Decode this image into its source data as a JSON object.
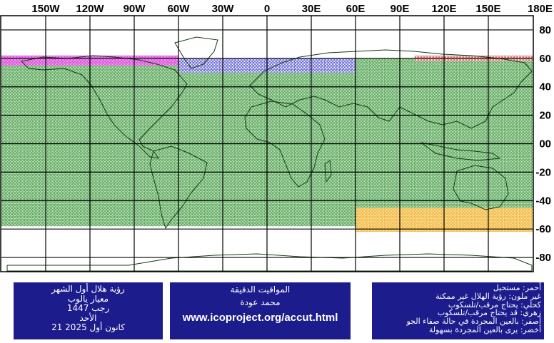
{
  "map": {
    "lon_ticks": [
      "150W",
      "120W",
      "90W",
      "60W",
      "30W",
      "0",
      "30E",
      "60E",
      "90E",
      "120E",
      "150E",
      "180E"
    ],
    "lat_ticks": [
      "80",
      "60",
      "40",
      "20",
      "00",
      "-20",
      "-40",
      "-60",
      "-80"
    ],
    "zones": [
      {
        "name": "green",
        "color": "#2e8b2e",
        "fill": "#c8e6c8",
        "lat": [
          -58,
          60
        ],
        "lon": [
          -180,
          180
        ]
      },
      {
        "name": "yellow",
        "color": "#e8a020",
        "fill": "#ffe6a0",
        "lat": [
          -62,
          -45
        ],
        "lon": [
          60,
          180
        ]
      },
      {
        "name": "magenta",
        "color": "#d020d0",
        "fill": "#f0b0f0",
        "lat": [
          55,
          62
        ],
        "lon": [
          -180,
          -60
        ]
      },
      {
        "name": "blue",
        "color": "#2020c0",
        "fill": "#ffffff",
        "lat": [
          50,
          60
        ],
        "lon": [
          -60,
          60
        ]
      },
      {
        "name": "red",
        "color": "#c02020",
        "fill": "#ffffff",
        "lat": [
          58,
          62
        ],
        "lon": [
          100,
          180
        ]
      }
    ]
  },
  "left_panel": {
    "line1": "رؤية هلال أول الشهر",
    "line2": "معيار يالوب",
    "line3": "رجب 1447",
    "line4": "الأحد",
    "line5": "21 كانون أول 2025"
  },
  "middle_panel": {
    "line1": "المواقيت الدقيقة",
    "line2": "محمد عودة",
    "url": "www.icoproject.org/accut.html"
  },
  "legend": [
    "أحمر: مستحيل",
    "غير ملون: رؤية الهلال غير ممكنة",
    "كحلي: يحتاج مرقب/تلسكوب",
    "زهري: قد يحتاج مرقب/تلسكوب",
    "أصفر: بالعين المجردة في حالة صفاء الجو",
    "أخضر: يرى بالعين المجردة بسهولة"
  ]
}
